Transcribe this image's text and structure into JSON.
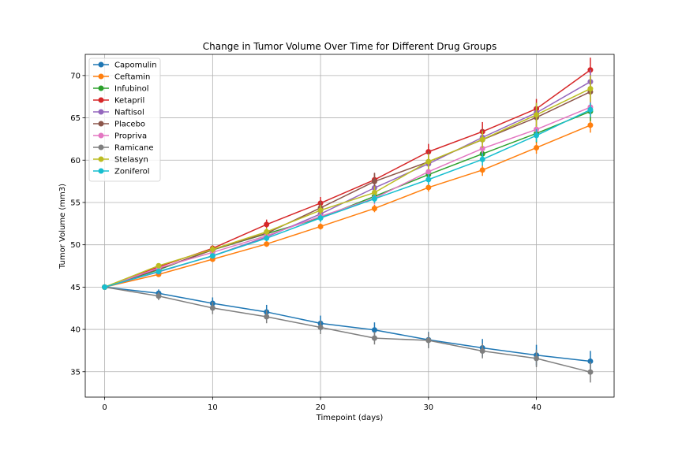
{
  "chart_data": {
    "type": "line",
    "title": "Change in Tumor Volume Over Time for Different Drug Groups",
    "xlabel": "Timepoint (days)",
    "ylabel": "Tumor Volume (mm3)",
    "xlim": [
      -1.8,
      47.2
    ],
    "ylim": [
      32.0,
      72.5
    ],
    "xticks": [
      0,
      10,
      20,
      30,
      40
    ],
    "yticks": [
      35,
      40,
      45,
      50,
      55,
      60,
      65,
      70
    ],
    "grid": true,
    "legend_position": "top-left",
    "x": [
      0,
      5,
      10,
      15,
      20,
      25,
      30,
      35,
      40,
      45
    ],
    "series": [
      {
        "name": "Capomulin",
        "color": "#1f77b4",
        "values": [
          45.0,
          44.27,
          43.08,
          42.06,
          40.72,
          39.94,
          38.77,
          37.82,
          36.96,
          36.24
        ],
        "errors": [
          0,
          0.45,
          0.7,
          0.84,
          0.91,
          0.89,
          0.93,
          1.05,
          1.22,
          1.22
        ]
      },
      {
        "name": "Ceftamin",
        "color": "#ff7f0e",
        "values": [
          45.0,
          46.5,
          48.29,
          50.09,
          52.16,
          54.29,
          56.77,
          58.83,
          61.47,
          64.13
        ],
        "errors": [
          0,
          0.16,
          0.24,
          0.33,
          0.36,
          0.44,
          0.49,
          0.69,
          0.71,
          0.88
        ]
      },
      {
        "name": "Infubinol",
        "color": "#2ca02c",
        "values": [
          45.0,
          47.06,
          49.4,
          51.3,
          53.2,
          55.72,
          58.3,
          60.74,
          63.16,
          65.76
        ],
        "errors": [
          0,
          0.24,
          0.28,
          0.36,
          0.48,
          0.55,
          0.63,
          0.98,
          1.06,
          1.14
        ]
      },
      {
        "name": "Ketapril",
        "color": "#d62728",
        "values": [
          45.0,
          47.39,
          49.58,
          52.4,
          54.92,
          57.68,
          60.99,
          63.37,
          66.07,
          70.66
        ],
        "errors": [
          0,
          0.26,
          0.36,
          0.58,
          0.73,
          0.76,
          0.93,
          1.13,
          1.16,
          1.45
        ]
      },
      {
        "name": "Naftisol",
        "color": "#9467bd",
        "values": [
          45.0,
          46.8,
          48.69,
          50.93,
          53.64,
          56.73,
          59.56,
          62.69,
          65.6,
          69.27
        ],
        "errors": [
          0,
          0.2,
          0.32,
          0.44,
          0.59,
          0.81,
          0.98,
          1.01,
          1.12,
          1.41
        ]
      },
      {
        "name": "Placebo",
        "color": "#8c564b",
        "values": [
          45.0,
          47.13,
          49.42,
          51.36,
          54.36,
          57.48,
          59.81,
          62.42,
          65.05,
          68.08
        ],
        "errors": [
          0,
          0.22,
          0.4,
          0.61,
          0.84,
          1.03,
          1.22,
          1.29,
          1.37,
          1.35
        ]
      },
      {
        "name": "Propriva",
        "color": "#e377c2",
        "values": [
          45.0,
          47.25,
          49.1,
          51.07,
          53.35,
          55.5,
          58.63,
          61.37,
          63.63,
          66.26
        ],
        "errors": [
          0,
          0.23,
          0.38,
          0.47,
          0.56,
          0.73,
          0.77,
          0.79,
          0.99,
          1.06
        ]
      },
      {
        "name": "Ramicane",
        "color": "#7f7f7f",
        "values": [
          45.0,
          43.94,
          42.53,
          41.5,
          40.24,
          38.97,
          38.7,
          37.45,
          36.57,
          34.96
        ],
        "errors": [
          0,
          0.48,
          0.72,
          0.77,
          0.79,
          0.75,
          0.93,
          0.87,
          1.03,
          1.23
        ]
      },
      {
        "name": "Stelasyn",
        "color": "#bcbd22",
        "values": [
          45.0,
          47.53,
          49.46,
          51.53,
          54.07,
          56.17,
          59.83,
          62.44,
          65.36,
          68.44
        ],
        "errors": [
          0,
          0.24,
          0.43,
          0.49,
          0.62,
          0.74,
          0.9,
          1.0,
          1.41,
          1.58
        ]
      },
      {
        "name": "Zoniferol",
        "color": "#17becf",
        "values": [
          45.0,
          46.85,
          48.69,
          50.78,
          53.17,
          55.43,
          57.71,
          60.09,
          62.92,
          65.96
        ],
        "errors": [
          0,
          0.19,
          0.26,
          0.36,
          0.44,
          0.5,
          0.62,
          0.74,
          0.74,
          0.81
        ]
      }
    ]
  }
}
